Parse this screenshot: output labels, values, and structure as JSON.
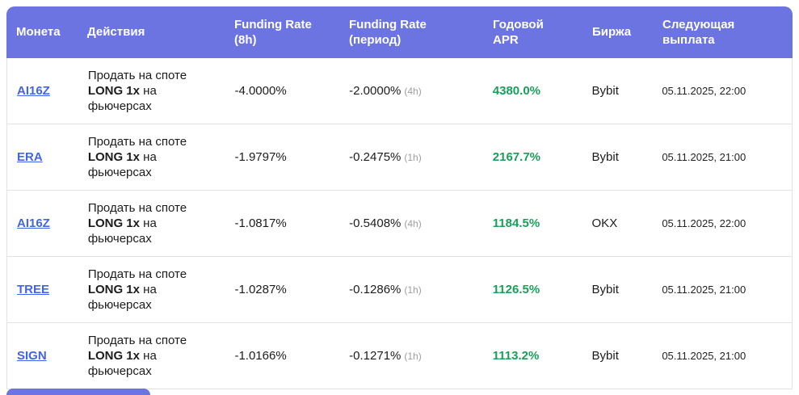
{
  "colors": {
    "header_bg": "#6b74e1",
    "coin_link": "#4263eb",
    "apr_green": "#18a05a",
    "period_muted": "#9e9e9e",
    "row_border": "#e2e2e2"
  },
  "table": {
    "headers": [
      "Монета",
      "Действия",
      "Funding Rate (8h)",
      "Funding Rate (период)",
      "Годовой APR",
      "Биржа",
      "Следующая выплата"
    ],
    "rows": [
      {
        "coin": "AI16Z",
        "action_pre": "Продать на споте",
        "action_bold": "LONG 1x",
        "action_post": "на фьючерсах",
        "rate_8h": "-4.0000%",
        "rate_period": "-2.0000%",
        "period_label": "(4h)",
        "apr": "4380.0%",
        "exchange": "Bybit",
        "next_payout": "05.11.2025, 22:00"
      },
      {
        "coin": "ERA",
        "action_pre": "Продать на споте",
        "action_bold": "LONG 1x",
        "action_post": "на фьючерсах",
        "rate_8h": "-1.9797%",
        "rate_period": "-0.2475%",
        "period_label": "(1h)",
        "apr": "2167.7%",
        "exchange": "Bybit",
        "next_payout": "05.11.2025, 21:00"
      },
      {
        "coin": "AI16Z",
        "action_pre": "Продать на споте",
        "action_bold": "LONG 1x",
        "action_post": "на фьючерсах",
        "rate_8h": "-1.0817%",
        "rate_period": "-0.5408%",
        "period_label": "(4h)",
        "apr": "1184.5%",
        "exchange": "OKX",
        "next_payout": "05.11.2025, 22:00"
      },
      {
        "coin": "TREE",
        "action_pre": "Продать на споте",
        "action_bold": "LONG 1x",
        "action_post": "на фьючерсах",
        "rate_8h": "-1.0287%",
        "rate_period": "-0.1286%",
        "period_label": "(1h)",
        "apr": "1126.5%",
        "exchange": "Bybit",
        "next_payout": "05.11.2025, 21:00"
      },
      {
        "coin": "SIGN",
        "action_pre": "Продать на споте",
        "action_bold": "LONG 1x",
        "action_post": "на фьючерсах",
        "rate_8h": "-1.0166%",
        "rate_period": "-0.1271%",
        "period_label": "(1h)",
        "apr": "1113.2%",
        "exchange": "Bybit",
        "next_payout": "05.11.2025, 21:00"
      }
    ]
  }
}
